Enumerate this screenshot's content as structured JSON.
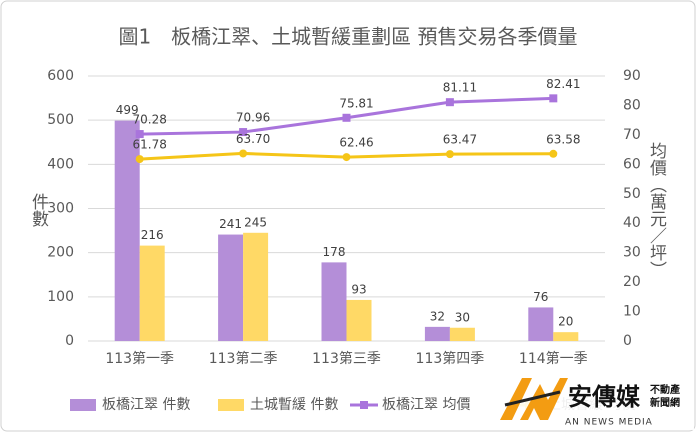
{
  "chart_data": {
    "type": "combo",
    "title": "圖1　板橋江翠、土城暫緩重劃區 預售交易各季價量",
    "y_label": "件數",
    "y2_label": "均價（萬元／坪）",
    "categories": [
      "113第一季",
      "113第二季",
      "113第三季",
      "113第四季",
      "114第一季"
    ],
    "series": [
      {
        "name": "板橋江翠 件數",
        "type": "bar",
        "color": "#b48ed8",
        "values": [
          499,
          241,
          178,
          32,
          76
        ]
      },
      {
        "name": "土城暫緩 件數",
        "type": "bar",
        "color": "#ffd966",
        "values": [
          216,
          245,
          93,
          30,
          20
        ]
      },
      {
        "name": "板橋江翠 均價",
        "type": "line",
        "axis": "y2",
        "marker": "square",
        "color": "#a974dc",
        "values": [
          70.28,
          70.96,
          75.81,
          81.11,
          82.41
        ],
        "value_labels": [
          "70.28",
          "70.96",
          "75.81",
          "81.11",
          "82.41"
        ]
      },
      {
        "name": "土城暫緩 均價",
        "type": "line",
        "axis": "y2",
        "marker": "circle",
        "color": "#f5c518",
        "values": [
          61.78,
          63.7,
          62.46,
          63.47,
          63.58
        ],
        "value_labels": [
          "61.78",
          "63.70",
          "62.46",
          "63.47",
          "63.58"
        ]
      }
    ],
    "ylim": [
      0,
      600
    ],
    "yticks": [
      0,
      100,
      200,
      300,
      400,
      500,
      600
    ],
    "y2lim": [
      0,
      90
    ],
    "y2ticks": [
      0,
      10,
      20,
      30,
      40,
      50,
      60,
      70,
      80,
      90
    ],
    "grid": true,
    "legend": "bottom"
  },
  "watermark": {
    "name": "安傳媒",
    "tagline": [
      "不動產",
      "新聞網"
    ],
    "english": "AN NEWS MEDIA"
  }
}
